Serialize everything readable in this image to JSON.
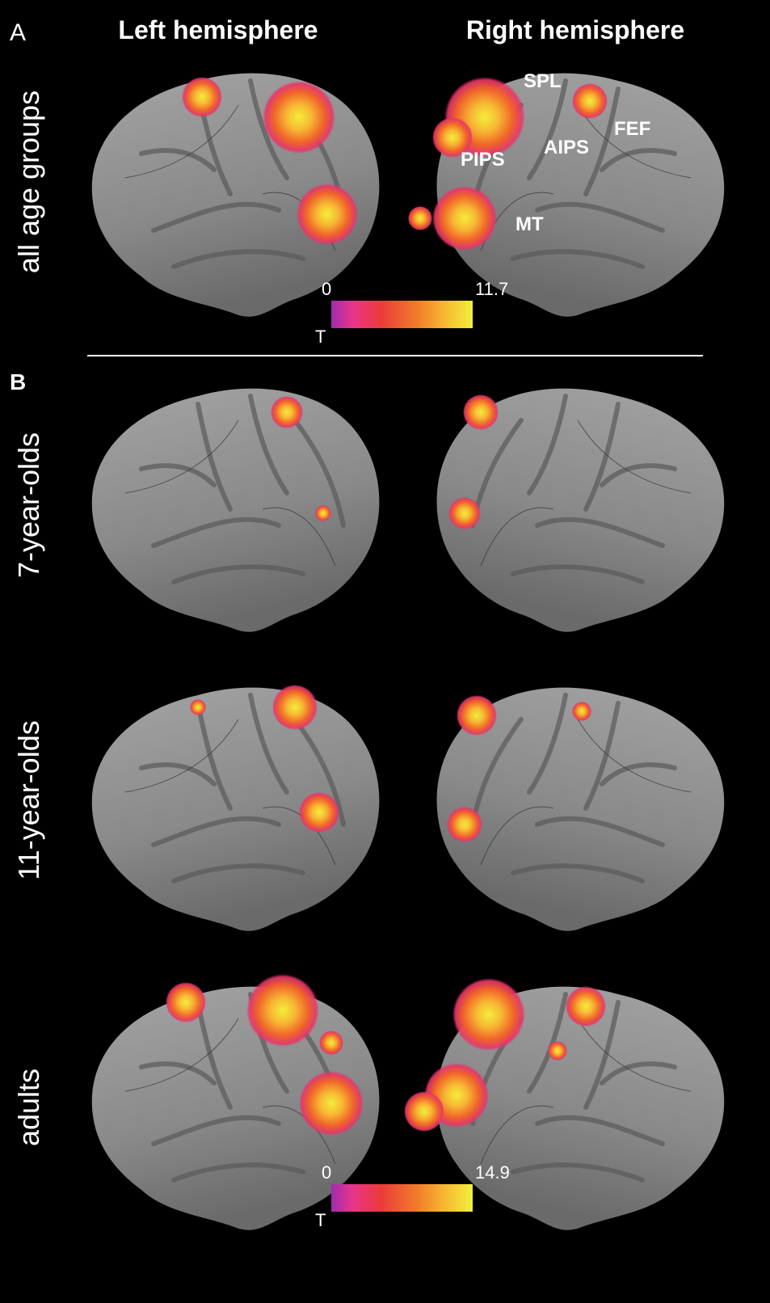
{
  "panel_a": {
    "letter": "A",
    "headings": [
      "Left hemisphere",
      "Right hemisphere"
    ],
    "row_label": "all age groups",
    "regions": [
      "SPL",
      "PIPS",
      "AIPS",
      "FEF",
      "MT"
    ],
    "colorbar": {
      "min": 0,
      "max": 11.7,
      "label": "T"
    }
  },
  "panel_b": {
    "letter": "B",
    "row_labels": [
      "7-year-olds",
      "11-year-olds",
      "adults"
    ],
    "colorbar": {
      "min": 0,
      "max": 14.9,
      "label": "T"
    }
  }
}
